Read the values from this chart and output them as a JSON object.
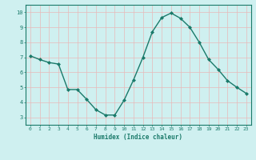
{
  "x": [
    0,
    1,
    2,
    3,
    4,
    5,
    6,
    7,
    8,
    9,
    10,
    11,
    12,
    13,
    14,
    15,
    16,
    17,
    18,
    19,
    20,
    21,
    22,
    23
  ],
  "y": [
    7.1,
    6.85,
    6.65,
    6.55,
    4.85,
    4.85,
    4.2,
    3.5,
    3.15,
    3.15,
    4.15,
    5.5,
    7.0,
    8.7,
    9.65,
    9.95,
    9.6,
    9.0,
    8.0,
    6.85,
    6.2,
    5.45,
    5.0,
    4.6
  ],
  "xlabel": "Humidex (Indice chaleur)",
  "xlim": [
    -0.5,
    23.5
  ],
  "ylim": [
    2.5,
    10.5
  ],
  "xticks": [
    0,
    1,
    2,
    3,
    4,
    5,
    6,
    7,
    8,
    9,
    10,
    11,
    12,
    13,
    14,
    15,
    16,
    17,
    18,
    19,
    20,
    21,
    22,
    23
  ],
  "yticks": [
    3,
    4,
    5,
    6,
    7,
    8,
    9,
    10
  ],
  "line_color": "#1a7a6a",
  "marker_color": "#1a7a6a",
  "bg_color": "#cff0f0",
  "grid_color": "#e8b8b8",
  "axis_color": "#1a7a6a",
  "tick_label_color": "#1a7a6a",
  "xlabel_color": "#1a7a6a"
}
